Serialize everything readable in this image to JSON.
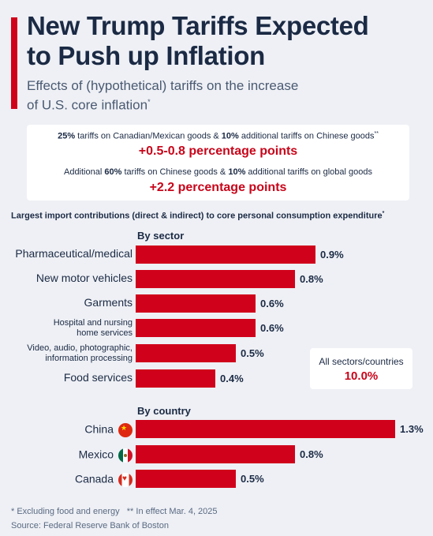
{
  "header": {
    "title_line1": "New Trump Tariffs Expected",
    "title_line2": "to Push up Inflation",
    "subtitle_line1": "Effects of (hypothetical) tariffs on the increase",
    "subtitle_line2": "of U.S. core inflation",
    "subtitle_mark": "*"
  },
  "scenarios": [
    {
      "parts": [
        {
          "text": "25%",
          "bold": true
        },
        {
          "text": " tariffs on Canadian/Mexican goods & ",
          "bold": false
        },
        {
          "text": "10%",
          "bold": true
        },
        {
          "text": " additional tariffs on Chinese goods",
          "bold": false
        }
      ],
      "mark": "**",
      "value": "+0.5-0.8 percentage points"
    },
    {
      "parts": [
        {
          "text": "Additional ",
          "bold": false
        },
        {
          "text": "60%",
          "bold": true
        },
        {
          "text": " tariffs on Chinese goods & ",
          "bold": false
        },
        {
          "text": "10%",
          "bold": true
        },
        {
          "text": " additional tariffs on global goods",
          "bold": false
        }
      ],
      "mark": "",
      "value": "+2.2 percentage points"
    }
  ],
  "chart_title": "Largest import contributions (direct & indirect) to core personal consumption expenditure",
  "chart_title_mark": "*",
  "all_sectors": {
    "label": "All sectors/countries",
    "value": "10.0%"
  },
  "footer": {
    "footnote": "* Excluding food and energy   ** In effect Mar. 4, 2025",
    "source": "Source: Federal Reserve Bank of Boston"
  },
  "colors": {
    "bar": "#d0021b",
    "accent": "#d0021b",
    "highlight_text": "#c8051a",
    "background": "#eef0f5"
  },
  "chart_data": [
    {
      "type": "bar",
      "orientation": "horizontal",
      "title": "By sector",
      "categories": [
        [
          "Pharmaceutical/medical"
        ],
        [
          "New motor vehicles"
        ],
        [
          "Garments"
        ],
        [
          "Hospital and nursing",
          "home services"
        ],
        [
          "Video, audio, photographic,",
          "information processing"
        ],
        [
          "Food services"
        ]
      ],
      "values": [
        0.9,
        0.8,
        0.6,
        0.6,
        0.5,
        0.4
      ],
      "value_labels": [
        "0.9%",
        "0.8%",
        "0.6%",
        "0.6%",
        "0.5%",
        "0.4%"
      ],
      "unit": "%",
      "xlim": [
        0,
        1.3
      ]
    },
    {
      "type": "bar",
      "orientation": "horizontal",
      "title": "By country",
      "categories": [
        [
          "China"
        ],
        [
          "Mexico"
        ],
        [
          "Canada"
        ]
      ],
      "flags": [
        "china-flag-icon",
        "mexico-flag-icon",
        "canada-flag-icon"
      ],
      "values": [
        1.3,
        0.8,
        0.5
      ],
      "value_labels": [
        "1.3%",
        "0.8%",
        "0.5%"
      ],
      "unit": "%",
      "xlim": [
        0,
        1.3
      ]
    }
  ]
}
